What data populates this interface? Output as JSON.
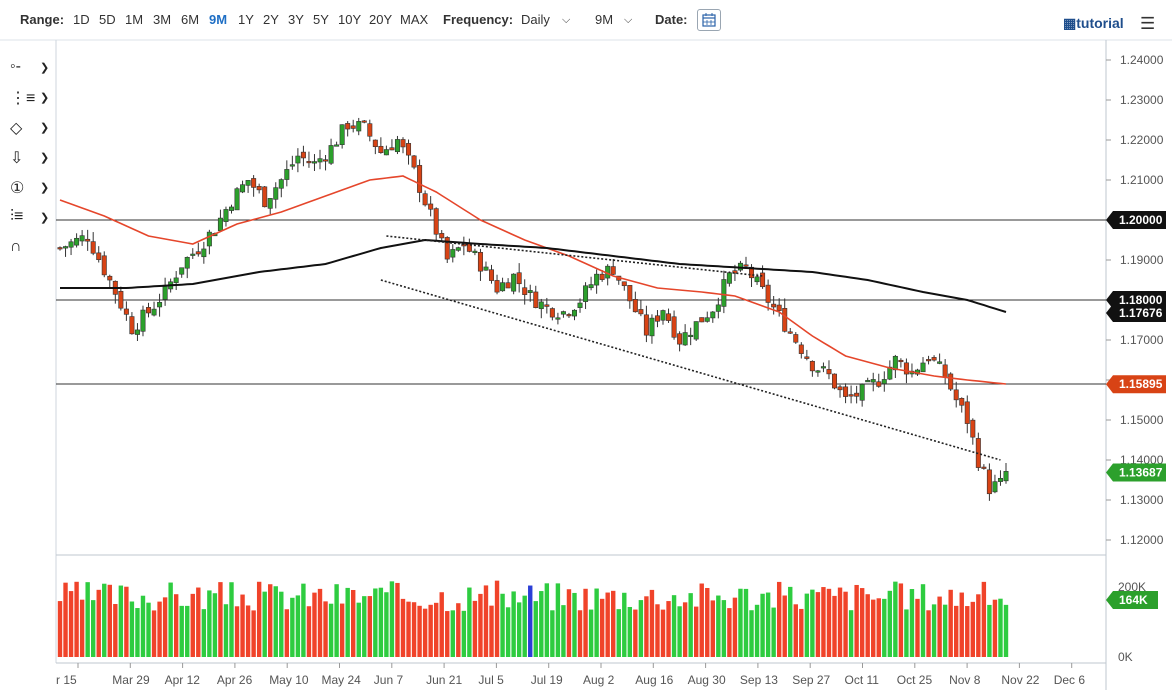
{
  "toolbar": {
    "range_label": "Range:",
    "ranges": [
      "1D",
      "5D",
      "1M",
      "3M",
      "6M",
      "9M",
      "1Y",
      "2Y",
      "3Y",
      "5Y",
      "10Y",
      "20Y",
      "MAX"
    ],
    "active_range": "9M",
    "frequency_label": "Frequency:",
    "frequency_value": "Daily",
    "period_value": "9M",
    "date_label": "Date:",
    "calendar_icon": "calendar-icon",
    "tutorial_label": "tutorial",
    "tutorial_icon": "film-icon",
    "menu_icon": "hamburger-icon"
  },
  "tools": [
    {
      "name": "crosshair-tool-icon",
      "glyph": "◦-"
    },
    {
      "name": "line-tool-icon",
      "glyph": "⋮≡"
    },
    {
      "name": "shape-tool-icon",
      "glyph": "◇"
    },
    {
      "name": "arrow-tool-icon",
      "glyph": "⇩"
    },
    {
      "name": "number-tool-icon",
      "glyph": "①"
    },
    {
      "name": "fibonacci-tool-icon",
      "glyph": "⫶≡"
    },
    {
      "name": "magnet-tool-icon",
      "glyph": "∩"
    }
  ],
  "colors": {
    "up": "#2ca02c",
    "down": "#d84315",
    "ma_short": "#e5462b",
    "ma_long": "#111111",
    "vol_up": "#2ecc40",
    "vol_down": "#f0432a",
    "vol_special": "#2b3fd6"
  },
  "chart_data": {
    "type": "candlestick",
    "y_ticks": [
      "1.24000",
      "1.23000",
      "1.22000",
      "1.21000",
      "1.20000",
      "1.19000",
      "1.18000",
      "1.17000",
      "1.16000",
      "1.15000",
      "1.14000",
      "1.13000",
      "1.12000"
    ],
    "y_tick_values": [
      1.24,
      1.23,
      1.22,
      1.21,
      1.2,
      1.19,
      1.18,
      1.17,
      1.16,
      1.15,
      1.14,
      1.13,
      1.12
    ],
    "ylim": [
      1.12,
      1.24
    ],
    "x_ticks": [
      "r 15",
      "Mar 29",
      "Apr 12",
      "Apr 26",
      "May 10",
      "May 24",
      "Jun 7",
      "Jun 21",
      "Jul 5",
      "Jul 19",
      "Aug 2",
      "Aug 16",
      "Aug 30",
      "Sep 13",
      "Sep 27",
      "Oct 11",
      "Oct 25",
      "Nov 8",
      "Nov 22",
      "Dec 6"
    ],
    "horizontal_levels": [
      1.2,
      1.18,
      1.159
    ],
    "price_labels": [
      {
        "text": "1.20000",
        "value": 1.2,
        "style": "dark"
      },
      {
        "text": "1.18000",
        "value": 1.18,
        "style": "dark"
      },
      {
        "text": "1.17676",
        "value": 1.17676,
        "style": "dark"
      },
      {
        "text": "1.15895",
        "value": 1.15895,
        "style": "red"
      },
      {
        "text": "1.13687",
        "value": 1.13687,
        "style": "green"
      }
    ],
    "volume_ticks": [
      "200K",
      "0K"
    ],
    "volume_label": "164K",
    "volume_ylim": [
      0,
      220
    ],
    "price_path": [
      [
        0,
        1.193
      ],
      [
        5,
        1.196
      ],
      [
        10,
        1.182
      ],
      [
        13,
        1.173
      ],
      [
        16,
        1.177
      ],
      [
        19,
        1.182
      ],
      [
        22,
        1.189
      ],
      [
        25,
        1.193
      ],
      [
        28,
        1.198
      ],
      [
        31,
        1.205
      ],
      [
        34,
        1.21
      ],
      [
        37,
        1.205
      ],
      [
        40,
        1.21
      ],
      [
        43,
        1.216
      ],
      [
        46,
        1.214
      ],
      [
        49,
        1.218
      ],
      [
        52,
        1.224
      ],
      [
        55,
        1.223
      ],
      [
        58,
        1.217
      ],
      [
        61,
        1.22
      ],
      [
        64,
        1.212
      ],
      [
        67,
        1.201
      ],
      [
        70,
        1.19
      ],
      [
        73,
        1.194
      ],
      [
        76,
        1.189
      ],
      [
        79,
        1.183
      ],
      [
        82,
        1.186
      ],
      [
        85,
        1.181
      ],
      [
        88,
        1.178
      ],
      [
        91,
        1.177
      ],
      [
        94,
        1.18
      ],
      [
        97,
        1.186
      ],
      [
        100,
        1.188
      ],
      [
        103,
        1.18
      ],
      [
        106,
        1.172
      ],
      [
        109,
        1.178
      ],
      [
        112,
        1.17
      ],
      [
        115,
        1.174
      ],
      [
        118,
        1.178
      ],
      [
        121,
        1.186
      ],
      [
        124,
        1.188
      ],
      [
        127,
        1.182
      ],
      [
        130,
        1.176
      ],
      [
        133,
        1.17
      ],
      [
        136,
        1.164
      ],
      [
        139,
        1.161
      ],
      [
        142,
        1.155
      ],
      [
        145,
        1.157
      ],
      [
        148,
        1.16
      ],
      [
        151,
        1.165
      ],
      [
        154,
        1.162
      ],
      [
        157,
        1.166
      ],
      [
        160,
        1.161
      ],
      [
        162,
        1.155
      ],
      [
        164,
        1.15
      ],
      [
        166,
        1.14
      ],
      [
        168,
        1.133
      ],
      [
        170,
        1.134
      ],
      [
        171,
        1.1369
      ]
    ],
    "ma_short_path": [
      [
        0,
        1.205
      ],
      [
        8,
        1.201
      ],
      [
        16,
        1.196
      ],
      [
        24,
        1.194
      ],
      [
        32,
        1.199
      ],
      [
        40,
        1.202
      ],
      [
        48,
        1.206
      ],
      [
        56,
        1.21
      ],
      [
        62,
        1.211
      ],
      [
        68,
        1.207
      ],
      [
        76,
        1.2
      ],
      [
        84,
        1.195
      ],
      [
        92,
        1.191
      ],
      [
        100,
        1.186
      ],
      [
        108,
        1.183
      ],
      [
        116,
        1.182
      ],
      [
        122,
        1.181
      ],
      [
        130,
        1.177
      ],
      [
        136,
        1.171
      ],
      [
        142,
        1.166
      ],
      [
        150,
        1.163
      ],
      [
        158,
        1.161
      ],
      [
        164,
        1.16
      ],
      [
        171,
        1.159
      ]
    ],
    "ma_long_path": [
      [
        0,
        1.183
      ],
      [
        12,
        1.183
      ],
      [
        24,
        1.184
      ],
      [
        36,
        1.187
      ],
      [
        48,
        1.189
      ],
      [
        58,
        1.193
      ],
      [
        66,
        1.195
      ],
      [
        76,
        1.194
      ],
      [
        88,
        1.193
      ],
      [
        100,
        1.191
      ],
      [
        112,
        1.189
      ],
      [
        124,
        1.188
      ],
      [
        136,
        1.187
      ],
      [
        146,
        1.185
      ],
      [
        156,
        1.182
      ],
      [
        164,
        1.18
      ],
      [
        171,
        1.177
      ]
    ],
    "trendlines": [
      {
        "from": [
          59,
          1.196
        ],
        "to": [
          127,
          1.186
        ]
      },
      {
        "from": [
          58,
          1.185
        ],
        "to": [
          170,
          1.14
        ]
      }
    ]
  }
}
